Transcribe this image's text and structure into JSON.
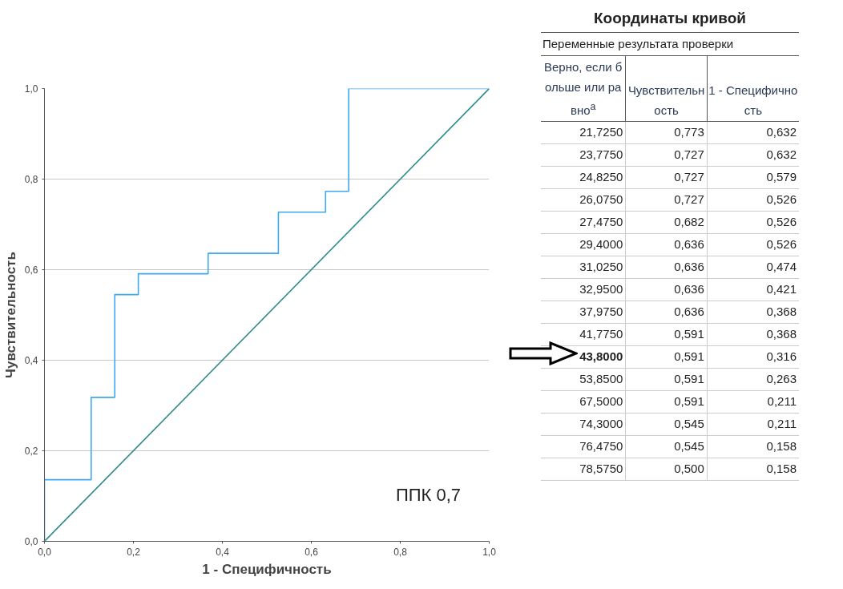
{
  "chart_data": [
    {
      "type": "line",
      "xlabel": "1 - Специфичность",
      "ylabel": "Чувствительность",
      "annotations": [
        "ППК 0,7"
      ],
      "series": [
        {
          "color": "#3ea8f0",
          "x": [
            0,
            0,
            0.105,
            0.105,
            0.158,
            0.158,
            0.211,
            0.211,
            0.368,
            0.368,
            0.526,
            0.526,
            0.632,
            0.632,
            0.684,
            0.684,
            1
          ],
          "values": [
            0,
            0.136,
            0.136,
            0.318,
            0.318,
            0.545,
            0.545,
            0.591,
            0.591,
            0.636,
            0.636,
            0.727,
            0.727,
            0.773,
            0.773,
            1,
            1
          ]
        },
        {
          "color": "#2e8b8b",
          "x": [
            0,
            1
          ],
          "values": [
            0,
            1
          ]
        }
      ],
      "xlim": [
        0,
        1
      ],
      "ylim": [
        0,
        1
      ],
      "xticks": [
        {
          "value": 0,
          "label": "0,0"
        },
        {
          "value": 0.2,
          "label": "0,2"
        },
        {
          "value": 0.4,
          "label": "0,4"
        },
        {
          "value": 0.6,
          "label": "0,6"
        },
        {
          "value": 0.8,
          "label": "0,8"
        },
        {
          "value": 1,
          "label": "1,0"
        }
      ],
      "yticks": [
        {
          "value": 0,
          "label": "0,0"
        },
        {
          "value": 0.2,
          "label": "0,2"
        },
        {
          "value": 0.4,
          "label": "0,4"
        },
        {
          "value": 0.6,
          "label": "0,6"
        },
        {
          "value": 0.8,
          "label": "0,8"
        },
        {
          "value": 1,
          "label": "1,0"
        }
      ],
      "grid": "y",
      "line_style": "solid",
      "marker": "none"
    },
    {
      "type": "other",
      "title": "Координаты кривой",
      "subtitle": "Переменные результата проверки",
      "categories": [
        "Верно, если больше или равно$^{а}$",
        "Чувствительность",
        "1 - Специфичность"
      ],
      "annotations": [
        "21,7250",
        "0,773",
        "0,632",
        "23,7750",
        "0,727",
        "0,632",
        "24,8250",
        "0,727",
        "0,579",
        "26,0750",
        "0,727",
        "0,526",
        "27,4750",
        "0,682",
        "0,526",
        "29,4000",
        "0,636",
        "0,526",
        "31,0250",
        "0,636",
        "0,474",
        "32,9500",
        "0,636",
        "0,421",
        "37,9750",
        "0,636",
        "0,368",
        "41,7750",
        "0,591",
        "0,368",
        "43,8000",
        "0,591",
        "0,316",
        "53,8500",
        "0,591",
        "0,263",
        "67,5000",
        "0,591",
        "0,211",
        "74,3000",
        "0,545",
        "0,211",
        "76,4750",
        "0,545",
        "0,158",
        "78,5750",
        "0,500",
        "0,158"
      ]
    }
  ]
}
